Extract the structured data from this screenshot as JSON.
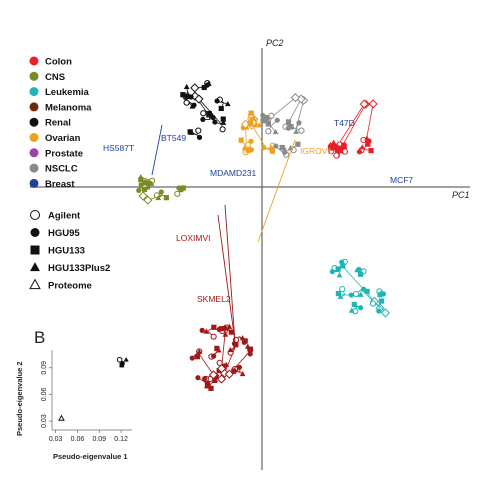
{
  "chart_data": [
    {
      "type": "scatter",
      "xlabel": "PC1",
      "ylabel": "PC2",
      "tissue_legend": [
        {
          "name": "Colon",
          "color": "#e8202a"
        },
        {
          "name": "CNS",
          "color": "#7a8a25"
        },
        {
          "name": "Leukemia",
          "color": "#20b5b5"
        },
        {
          "name": "Melanoma",
          "color": "#6b2a0e"
        },
        {
          "name": "Renal",
          "color": "#111111"
        },
        {
          "name": "Ovarian",
          "color": "#f0a020"
        },
        {
          "name": "Prostate",
          "color": "#a040b0"
        },
        {
          "name": "NSCLC",
          "color": "#8a8a8a"
        },
        {
          "name": "Breast",
          "color": "#2040a0"
        }
      ],
      "platform_legend": [
        {
          "name": "Agilent",
          "shape": "circle-open"
        },
        {
          "name": "HGU95",
          "shape": "circle-filled"
        },
        {
          "name": "HGU133",
          "shape": "square-filled"
        },
        {
          "name": "HGU133Plus2",
          "shape": "triangle-filled"
        },
        {
          "name": "Proteome",
          "shape": "triangle-open"
        }
      ],
      "cell_line_labels": [
        {
          "text": "HS587T",
          "color": "#2040a0"
        },
        {
          "text": "BT549",
          "color": "#2040a0"
        },
        {
          "text": "MDAMD231",
          "color": "#2040a0"
        },
        {
          "text": "IGROV1",
          "color": "#f0a020"
        },
        {
          "text": "T47D",
          "color": "#2040a0"
        },
        {
          "text": "MCF7",
          "color": "#2040a0"
        },
        {
          "text": "LOXIMVI",
          "color": "#a01818"
        },
        {
          "text": "SKMEL2",
          "color": "#a01818"
        }
      ],
      "clusters": [
        {
          "group": "Melanoma",
          "color": "#a01818",
          "center": [
            -1.3,
            -4.6
          ],
          "spread": [
            1.0,
            0.9
          ],
          "n": 13,
          "proteome": [
            -1.5,
            -5.2
          ]
        },
        {
          "group": "Leukemia",
          "color": "#20b5b5",
          "center": [
            3.5,
            -2.8
          ],
          "spread": [
            0.9,
            0.7
          ],
          "n": 8,
          "proteome": [
            4.5,
            -3.4
          ]
        },
        {
          "group": "Colon",
          "color": "#e8202a",
          "center": [
            3.2,
            1.2
          ],
          "spread": [
            0.8,
            0.5
          ],
          "n": 7,
          "proteome": [
            4.1,
            2.7
          ]
        },
        {
          "group": "Renal",
          "color": "#111111",
          "center": [
            -2.0,
            2.0
          ],
          "spread": [
            0.8,
            0.7
          ],
          "n": 8,
          "proteome": [
            -2.6,
            2.6
          ]
        },
        {
          "group": "CNS",
          "color": "#7a8a25",
          "center": [
            -3.5,
            0.0
          ],
          "spread": [
            0.7,
            0.3
          ],
          "n": 6,
          "proteome": [
            -4.3,
            -0.4
          ]
        },
        {
          "group": "Ovarian",
          "color": "#f0a020",
          "center": [
            -0.3,
            1.3
          ],
          "spread": [
            0.5,
            0.5
          ],
          "n": 6,
          "proteome": [
            -0.6,
            1.9
          ]
        },
        {
          "group": "NSCLC",
          "color": "#8a8a8a",
          "center": [
            0.5,
            1.3
          ],
          "spread": [
            0.8,
            0.6
          ],
          "n": 7,
          "proteome": [
            1.6,
            2.6
          ]
        }
      ],
      "xlim": [
        -7,
        7
      ],
      "ylim": [
        -8,
        4.5
      ]
    },
    {
      "panel_label": "B",
      "type": "scatter",
      "xlabel": "Pseudo-eigenvalue 1",
      "ylabel": "Pseudo-eigenvalue 2",
      "xticks": [
        "0.03",
        "0.06",
        "0.09",
        "0.12"
      ],
      "yticks": [
        "0.03",
        "0.06",
        "0.09"
      ],
      "xlim": [
        0.025,
        0.135
      ],
      "ylim": [
        0.02,
        0.11
      ],
      "points": [
        {
          "platform": "Agilent",
          "x": 0.118,
          "y": 0.099
        },
        {
          "platform": "HGU95",
          "x": 0.122,
          "y": 0.095
        },
        {
          "platform": "HGU133",
          "x": 0.121,
          "y": 0.093
        },
        {
          "platform": "HGU133Plus2",
          "x": 0.127,
          "y": 0.099
        },
        {
          "platform": "Proteome",
          "x": 0.038,
          "y": 0.033
        }
      ]
    }
  ]
}
